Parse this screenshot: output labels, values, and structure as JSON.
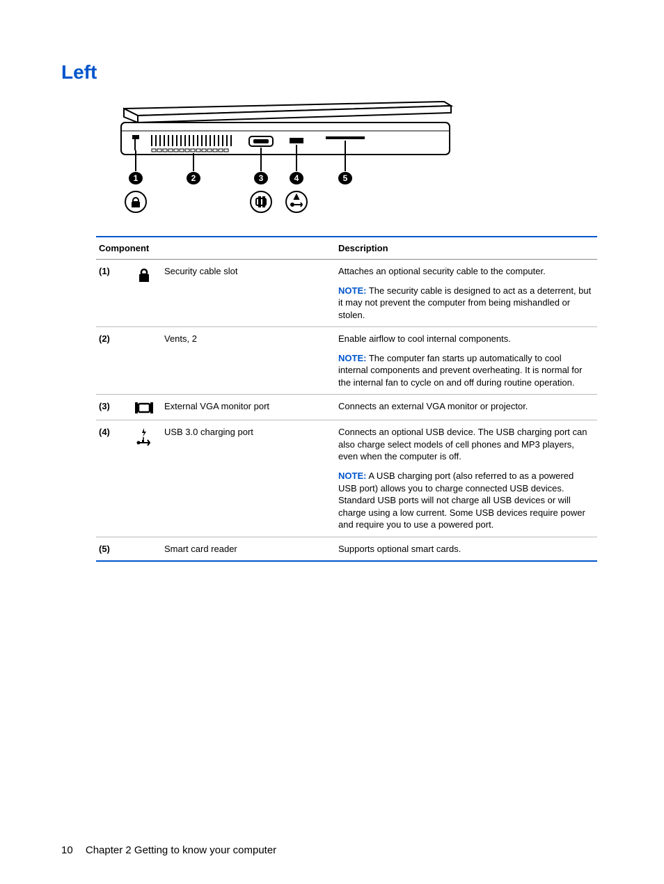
{
  "heading": "Left",
  "accent_color": "#0055cc",
  "table": {
    "header_component": "Component",
    "header_description": "Description",
    "note_label": "NOTE:",
    "rows": [
      {
        "num": "(1)",
        "icon": "lock",
        "component": "Security cable slot",
        "description": "Attaches an optional security cable to the computer.",
        "note": "The security cable is designed to act as a deterrent, but it may not prevent the computer from being mishandled or stolen."
      },
      {
        "num": "(2)",
        "icon": "",
        "component": "Vents, 2",
        "description": "Enable airflow to cool internal components.",
        "note": "The computer fan starts up automatically to cool internal components and prevent overheating. It is normal for the internal fan to cycle on and off during routine operation."
      },
      {
        "num": "(3)",
        "icon": "vga",
        "component": "External VGA monitor port",
        "description": "Connects an external VGA monitor or projector.",
        "note": ""
      },
      {
        "num": "(4)",
        "icon": "usb-charge",
        "component": "USB 3.0 charging port",
        "description": "Connects an optional USB device. The USB charging port can also charge select models of cell phones and MP3 players, even when the computer is off.",
        "note": "A USB charging port (also referred to as a powered USB port) allows you to charge connected USB devices. Standard USB ports will not charge all USB devices or will charge using a low current. Some USB devices require power and require you to use a powered port."
      },
      {
        "num": "(5)",
        "icon": "",
        "component": "Smart card reader",
        "description": "Supports optional smart cards.",
        "note": ""
      }
    ]
  },
  "diagram": {
    "callouts": [
      "1",
      "2",
      "3",
      "4",
      "5"
    ]
  },
  "footer": {
    "page_number": "10",
    "chapter_label": "Chapter 2   Getting to know your computer"
  }
}
